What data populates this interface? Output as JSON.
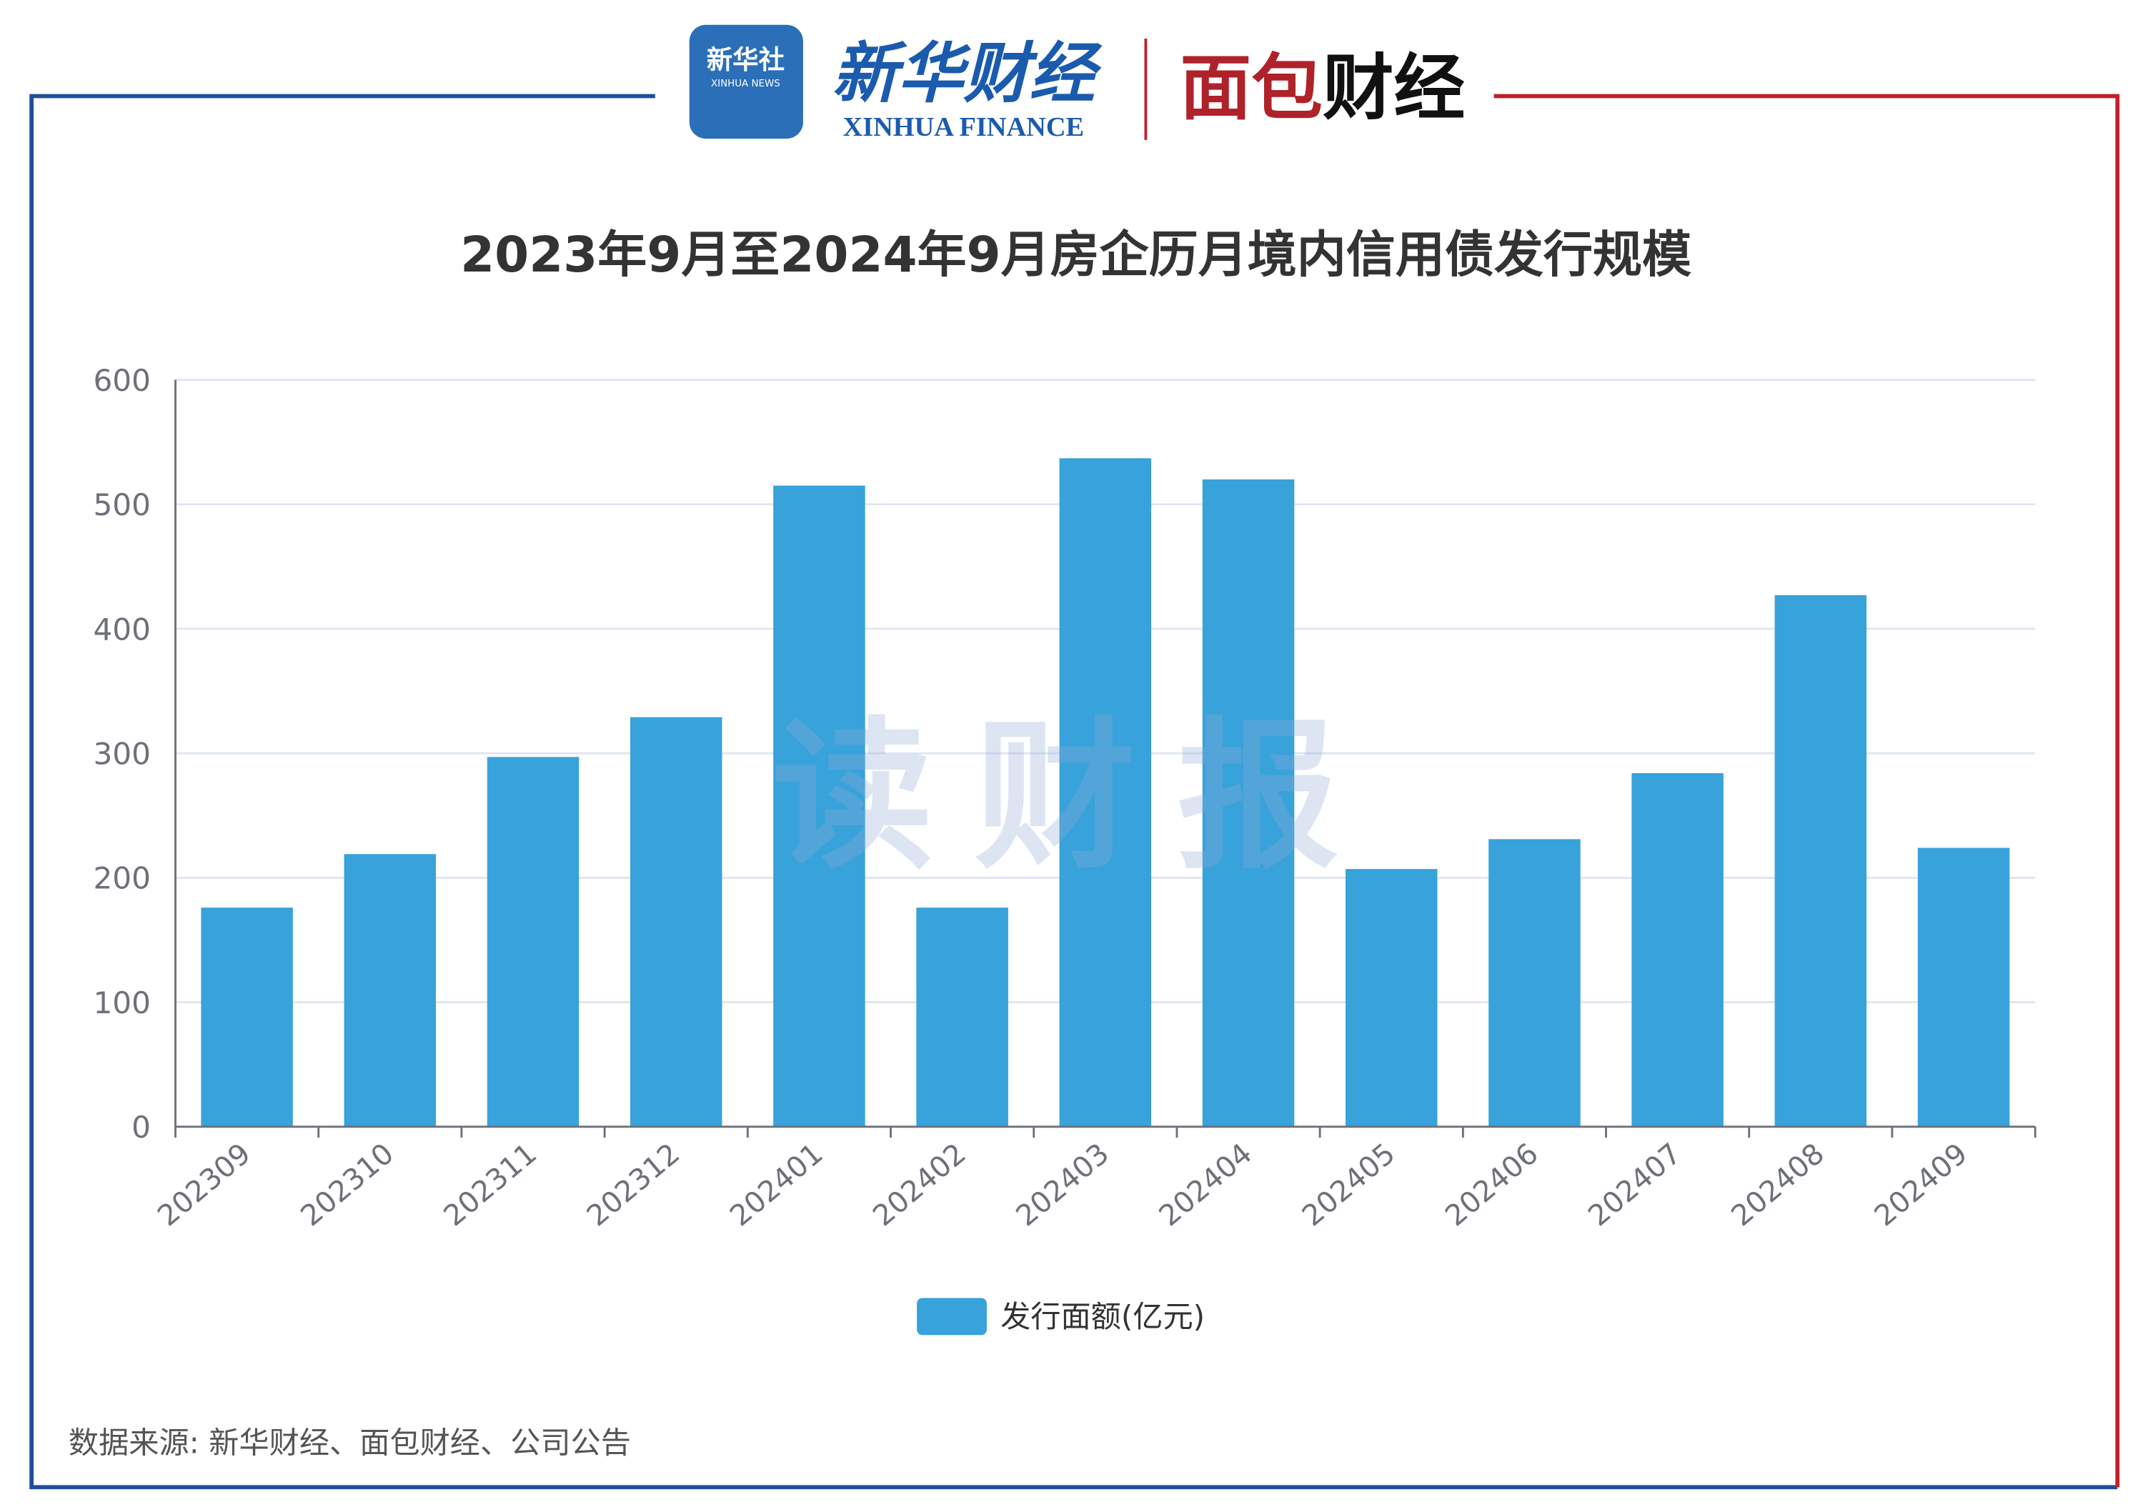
{
  "header": {
    "logo_xinhua_news": "新华社 XINHUA NEWS",
    "logo_xinhua_finance_cn": "新华财经",
    "logo_xinhua_finance_en": "XINHUA FINANCE",
    "logo_mianbao": "面包财经"
  },
  "watermark": "读财报",
  "source": "数据来源: 新华财经、面包财经、公司公告",
  "colors": {
    "bar": "#38A2DA",
    "frame_left": "#1F4E9B",
    "frame_right": "#C0202A",
    "grid": "#E0E6F1"
  },
  "chart_data": {
    "type": "bar",
    "title": "2023年9月至2024年9月房企历月境内信用债发行规模",
    "categories": [
      "202309",
      "202310",
      "202311",
      "202312",
      "202401",
      "202402",
      "202403",
      "202404",
      "202405",
      "202406",
      "202407",
      "202408",
      "202409"
    ],
    "series": [
      {
        "name": "发行面额(亿元)",
        "values": [
          176,
          219,
          297,
          329,
          515,
          176,
          537,
          520,
          207,
          231,
          284,
          427,
          224
        ]
      }
    ],
    "ylim": [
      0,
      600
    ],
    "yticks": [
      0,
      100,
      200,
      300,
      400,
      500,
      600
    ],
    "grid": true,
    "legend": "bottom"
  }
}
